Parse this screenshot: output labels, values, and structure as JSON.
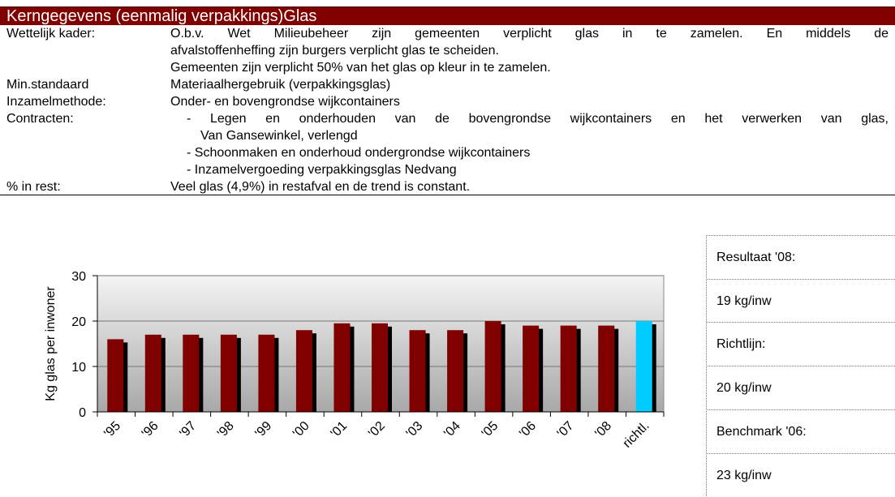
{
  "header": {
    "title": "Kerngegevens (eenmalig verpakkings)Glas"
  },
  "rows": [
    {
      "label": "Wettelijk kader:",
      "lines": [
        "O.b.v. Wet Milieubeheer zijn gemeenten verplicht glas in te zamelen. En middels de",
        "afvalstoffenheffing zijn burgers verplicht glas te scheiden.",
        "Gemeenten zijn verplicht 50% van het glas op kleur in te zamelen."
      ]
    },
    {
      "label": "Min.standaard",
      "lines": [
        "Materiaalhergebruik (verpakkingsglas)"
      ]
    },
    {
      "label": "Inzamelmethode:",
      "lines": [
        "Onder- en bovengrondse wijkcontainers"
      ]
    },
    {
      "label": "Contracten:",
      "lines": [
        "- Legen en onderhouden van de bovengrondse wijkcontainers en het verwerken van glas,",
        "Van Gansewinkel, verlengd",
        "- Schoonmaken en onderhoud ondergrondse wijkcontainers",
        "- Inzamelvergoeding verpakkingsglas Nedvang"
      ]
    },
    {
      "label": "% in rest:",
      "lines": [
        "Veel glas (4,9%) in restafval en de trend is constant."
      ]
    }
  ],
  "chart_data": {
    "type": "bar",
    "ylabel": "Kg glas per inwoner",
    "categories": [
      "'95",
      "'96",
      "'97",
      "'98",
      "'99",
      "'00",
      "'01",
      "'02",
      "'03",
      "'04",
      "'05",
      "'06",
      "'07",
      "'08",
      "richtl."
    ],
    "values": [
      16,
      17,
      17,
      17,
      17,
      18,
      19.5,
      19.5,
      18,
      18,
      20,
      19,
      19,
      19,
      20
    ],
    "colors": [
      "#800000",
      "#800000",
      "#800000",
      "#800000",
      "#800000",
      "#800000",
      "#800000",
      "#800000",
      "#800000",
      "#800000",
      "#800000",
      "#800000",
      "#800000",
      "#800000",
      "#00ccff"
    ],
    "ylim": [
      0,
      30
    ],
    "yticks": [
      0,
      10,
      20,
      30
    ],
    "grid": true
  },
  "side_panel": [
    "Resultaat '08:",
    "19 kg/inw",
    "Richtlijn:",
    "20 kg/inw",
    "Benchmark '06:",
    "23 kg/inw"
  ]
}
